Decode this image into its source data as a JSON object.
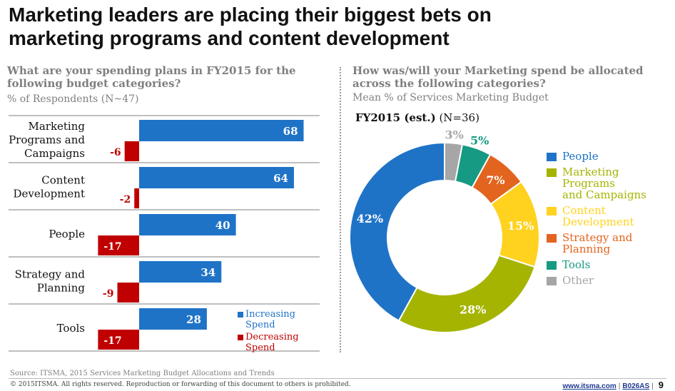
{
  "title": {
    "line1": "Marketing leaders are placing their biggest bets on",
    "line2": "marketing programs and content development"
  },
  "left": {
    "question_line1": "What are your spending plans in FY2015 for the",
    "question_line2": "following budget categories?",
    "subtitle": "% of Respondents (N~47)"
  },
  "right": {
    "question_line1": "How was/will your Marketing spend be allocated",
    "question_line2": "across the following categories?",
    "subtitle": "Mean % of Services Marketing Budget",
    "fy_label_bold": "FY2015 (est.)",
    "fy_label_n": " (N=36)"
  },
  "colors": {
    "increase": "#1f73c7",
    "decrease": "#c00000",
    "people": "#1f73c7",
    "programs": "#a5b400",
    "content": "#ffd21f",
    "strategy": "#e3641e",
    "tools": "#169a83",
    "other": "#a6a6a6"
  },
  "chart_data": [
    {
      "type": "bar",
      "orientation": "horizontal",
      "categories": [
        "Marketing Programs and Campaigns",
        "Content Development",
        "People",
        "Strategy and Planning",
        "Tools"
      ],
      "category_lines": [
        [
          "Marketing",
          "Programs and",
          "Campaigns"
        ],
        [
          "Content",
          "Development"
        ],
        [
          "People"
        ],
        [
          "Strategy and",
          "Planning"
        ],
        [
          "Tools"
        ]
      ],
      "series": [
        {
          "name": "Increasing Spend",
          "name_lines": [
            "Increasing",
            "Spend"
          ],
          "values": [
            68,
            64,
            40,
            34,
            28
          ]
        },
        {
          "name": "Decreasing Spend",
          "name_lines": [
            "Decreasing",
            "Spend"
          ],
          "values": [
            -6,
            -2,
            -17,
            -9,
            -17
          ]
        }
      ],
      "legend": "bottom-right",
      "grid": false
    },
    {
      "type": "pie",
      "donut": true,
      "categories": [
        "People",
        "Marketing Programs and Campaigns",
        "Content Development",
        "Strategy and Planning",
        "Tools",
        "Other"
      ],
      "category_lines": [
        [
          "People"
        ],
        [
          "Marketing Programs",
          "and Campaigns"
        ],
        [
          "Content",
          "Development"
        ],
        [
          "Strategy and",
          "Planning"
        ],
        [
          "Tools"
        ],
        [
          "Other"
        ]
      ],
      "values": [
        42,
        28,
        15,
        7,
        5,
        3
      ],
      "value_labels": [
        "42%",
        "28%",
        "15%",
        "7%",
        "5%",
        "3%"
      ],
      "legend": "right"
    }
  ],
  "footer": {
    "source": "Source: ITSMA, 2015 Services Marketing Budget Allocations and Trends",
    "copyright": "© 2015ITSMA. All rights reserved. Reproduction or forwarding of this document to others is prohibited.",
    "website": "www.itsma.com",
    "code": "B026AS",
    "page": "9"
  }
}
